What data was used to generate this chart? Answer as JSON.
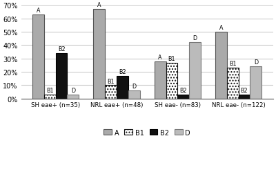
{
  "groups": [
    "SH eae+ (n=35)",
    "NRL eae+ (n=48)",
    "SH eae- (n=83)",
    "NRL eae- (n=122)"
  ],
  "series": {
    "A": [
      63,
      67,
      28,
      50
    ],
    "B1": [
      3,
      10,
      27,
      23
    ],
    "B2": [
      34,
      17,
      3,
      3
    ],
    "D": [
      3,
      6,
      42,
      24
    ]
  },
  "colors": {
    "A": "#aaaaaa",
    "B1": "#ffffff",
    "B2": "#111111",
    "D": "#bbbbbb"
  },
  "hatches": {
    "A": "",
    "B1": "....",
    "B2": "",
    "D": ""
  },
  "edgecolors": {
    "A": "#555555",
    "B1": "#111111",
    "B2": "#000000",
    "D": "#777777"
  },
  "ylim": [
    0,
    70
  ],
  "yticks": [
    0,
    10,
    20,
    30,
    40,
    50,
    60,
    70
  ],
  "ytick_labels": [
    "0%",
    "10%",
    "20%",
    "30%",
    "40%",
    "50%",
    "60%",
    "70%"
  ],
  "bar_width": 0.19,
  "legend_labels": [
    "A",
    "B1",
    "B2",
    "D"
  ],
  "background_color": "#ffffff",
  "grid_color": "#cccccc",
  "label_offsets": {
    "A": 1.0,
    "B1": 1.0,
    "B2": 1.0,
    "D": 1.0
  }
}
